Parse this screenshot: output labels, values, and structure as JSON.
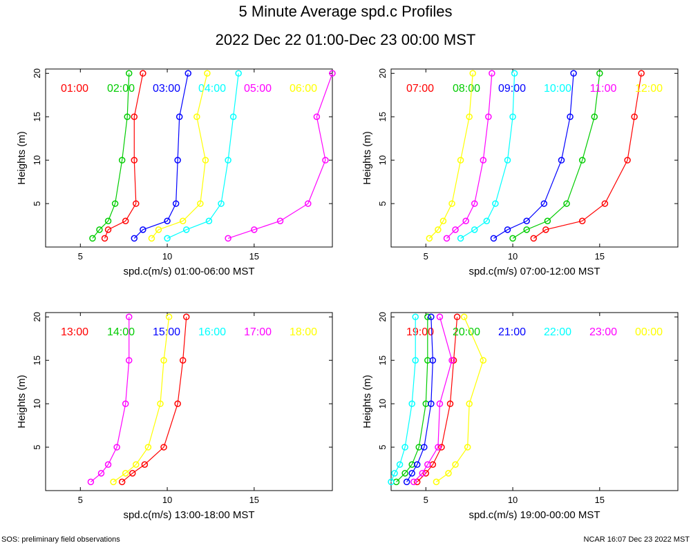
{
  "title": "5 Minute Average spd.c Profiles",
  "subtitle": "2022 Dec 22 01:00-Dec 23 00:00 MST",
  "footer": {
    "left": "SOS: preliminary field observations",
    "right": "NCAR 16:07 Dec 23 2022 MST"
  },
  "colors": [
    "#ff0000",
    "#00cc00",
    "#0000ff",
    "#00ffff",
    "#ff00ff",
    "#ffff00"
  ],
  "chart_data": [
    {
      "type": "line",
      "xlabel": "spd.c(m/s) 01:00-06:00 MST",
      "ylabel": "Heights (m)",
      "xlim": [
        3,
        19.5
      ],
      "ylim": [
        0,
        20.5
      ],
      "xticks": [
        5,
        10,
        15
      ],
      "yticks": [
        5,
        10,
        15,
        20
      ],
      "heights": [
        1,
        2,
        3,
        5,
        10,
        15,
        20
      ],
      "series": [
        {
          "name": "01:00",
          "values": [
            6.4,
            6.6,
            7.6,
            8.2,
            8.1,
            8.1,
            8.6
          ]
        },
        {
          "name": "02:00",
          "values": [
            5.7,
            6.1,
            6.6,
            7.0,
            7.4,
            7.7,
            7.8
          ]
        },
        {
          "name": "03:00",
          "values": [
            8.1,
            8.6,
            10.0,
            10.5,
            10.6,
            10.7,
            11.2
          ]
        },
        {
          "name": "04:00",
          "values": [
            10.0,
            11.1,
            12.4,
            13.1,
            13.5,
            13.8,
            14.1
          ]
        },
        {
          "name": "05:00",
          "values": [
            13.5,
            15.0,
            16.5,
            18.1,
            19.1,
            18.6,
            19.5
          ]
        },
        {
          "name": "06:00",
          "values": [
            9.1,
            9.5,
            10.9,
            11.9,
            12.2,
            11.7,
            12.3
          ]
        }
      ]
    },
    {
      "type": "line",
      "xlabel": "spd.c(m/s) 07:00-12:00 MST",
      "ylabel": "Heights (m)",
      "xlim": [
        3,
        19.5
      ],
      "ylim": [
        0,
        20.5
      ],
      "xticks": [
        5,
        10,
        15
      ],
      "yticks": [
        5,
        10,
        15,
        20
      ],
      "heights": [
        1,
        2,
        3,
        5,
        10,
        15,
        20
      ],
      "series": [
        {
          "name": "07:00",
          "values": [
            11.2,
            11.9,
            14.0,
            15.3,
            16.6,
            17.0,
            17.4
          ]
        },
        {
          "name": "08:00",
          "values": [
            10.0,
            10.8,
            12.0,
            13.1,
            14.0,
            14.7,
            15.0
          ]
        },
        {
          "name": "09:00",
          "values": [
            8.9,
            9.7,
            10.8,
            11.8,
            12.8,
            13.3,
            13.5
          ]
        },
        {
          "name": "10:00",
          "values": [
            7.0,
            7.8,
            8.5,
            9.0,
            9.7,
            10.0,
            10.1
          ]
        },
        {
          "name": "11:00",
          "values": [
            6.2,
            6.7,
            7.3,
            7.8,
            8.3,
            8.6,
            8.8
          ]
        },
        {
          "name": "12:00",
          "values": [
            5.2,
            5.7,
            6.0,
            6.5,
            7.0,
            7.5,
            7.7
          ]
        }
      ]
    },
    {
      "type": "line",
      "xlabel": "spd.c(m/s) 13:00-18:00 MST",
      "ylabel": "Heights (m)",
      "xlim": [
        3,
        19.5
      ],
      "ylim": [
        0,
        20.5
      ],
      "xticks": [
        5,
        10,
        15
      ],
      "yticks": [
        5,
        10,
        15,
        20
      ],
      "heights": [
        1,
        2,
        3,
        5,
        10,
        15,
        20
      ],
      "series": [
        {
          "name": "13:00",
          "values": [
            7.4,
            8.0,
            8.7,
            9.8,
            10.6,
            10.9,
            11.1
          ]
        },
        {
          "name": "14:00",
          "values": [],
          "display": "no_data"
        },
        {
          "name": "15:00",
          "values": [],
          "display": "no_data"
        },
        {
          "name": "16:00",
          "values": [],
          "display": "no_data"
        },
        {
          "name": "17:00",
          "values": [
            5.6,
            6.2,
            6.6,
            7.1,
            7.6,
            7.8,
            7.8
          ]
        },
        {
          "name": "18:00",
          "values": [
            6.9,
            7.6,
            8.2,
            8.9,
            9.6,
            9.8,
            10.1
          ]
        }
      ]
    },
    {
      "type": "line",
      "xlabel": "spd.c(m/s) 19:00-00:00 MST",
      "ylabel": "Heights (m)",
      "xlim": [
        3,
        19.5
      ],
      "ylim": [
        0,
        20.5
      ],
      "xticks": [
        5,
        10,
        15
      ],
      "yticks": [
        5,
        10,
        15,
        20
      ],
      "heights": [
        1,
        2,
        3,
        5,
        10,
        15,
        20
      ],
      "series": [
        {
          "name": "19:00",
          "values": [
            4.5,
            5.0,
            5.4,
            5.9,
            6.4,
            6.6,
            6.8
          ]
        },
        {
          "name": "20:00",
          "values": [
            3.3,
            3.8,
            4.2,
            4.6,
            5.0,
            5.1,
            5.1
          ]
        },
        {
          "name": "21:00",
          "values": [
            3.9,
            4.2,
            4.5,
            4.9,
            5.3,
            5.4,
            5.3
          ]
        },
        {
          "name": "22:00",
          "values": [
            3.0,
            3.2,
            3.5,
            3.8,
            4.2,
            4.4,
            4.4
          ]
        },
        {
          "name": "23:00",
          "values": [
            4.3,
            4.8,
            5.1,
            5.7,
            5.8,
            6.5,
            5.8
          ]
        },
        {
          "name": "00:00",
          "values": [
            5.6,
            6.3,
            6.7,
            7.4,
            7.5,
            8.3,
            7.2
          ]
        }
      ]
    }
  ]
}
